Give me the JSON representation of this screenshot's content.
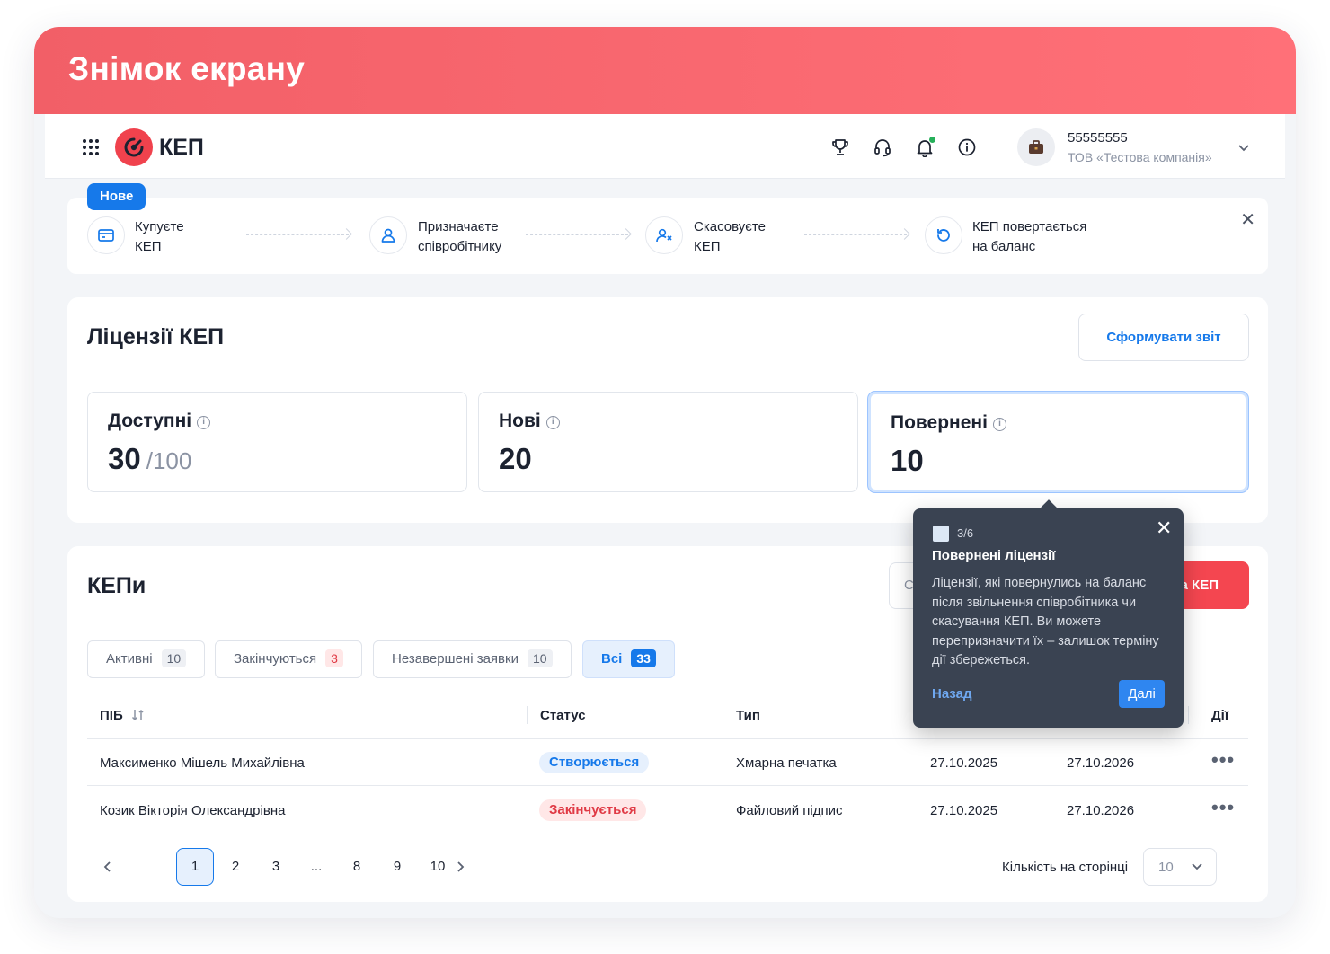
{
  "banner": {
    "title": "Знімок екрану"
  },
  "header": {
    "logo_text": "КЕП",
    "icons": [
      "apps-grid-icon",
      "trophy-icon",
      "headset-icon",
      "bell-icon",
      "info-icon"
    ],
    "account": {
      "id": "55555555",
      "company": "ТОВ «Тестова компанія»"
    }
  },
  "onboarding": {
    "badge": "Нове",
    "steps": [
      {
        "icon": "card-icon",
        "line1": "Купуєте",
        "line2": "КЕП"
      },
      {
        "icon": "user-icon",
        "line1": "Призначаєте",
        "line2": "співробітнику"
      },
      {
        "icon": "user-cancel-icon",
        "line1": "Скасовуєте",
        "line2": "КЕП"
      },
      {
        "icon": "refresh-icon",
        "line1": "КЕП повертається",
        "line2": "на баланс"
      }
    ]
  },
  "licenses": {
    "title": "Ліцензії КЕП",
    "report_button": "Сформувати звіт",
    "cards": [
      {
        "label": "Доступні",
        "value": "30",
        "total": "/100"
      },
      {
        "label": "Нові",
        "value": "20",
        "total": ""
      },
      {
        "label": "Повернені",
        "value": "10",
        "total": ""
      }
    ]
  },
  "keps": {
    "title": "КЕПи",
    "search_placeholder": "С",
    "add_button": "а КЕП",
    "tabs": [
      {
        "label": "Активні",
        "count": "10"
      },
      {
        "label": "Закінчуються",
        "count": "3"
      },
      {
        "label": "Незавершені заявки",
        "count": "10"
      },
      {
        "label": "Всі",
        "count": "33"
      }
    ],
    "columns": {
      "name": "ПІБ",
      "status": "Статус",
      "type": "Тип",
      "actions": "Дії"
    },
    "rows": [
      {
        "name": "Максименко Мішель Михайлівна",
        "status": "Створюється",
        "type": "Хмарна печатка",
        "start": "27.10.2025",
        "end": "27.10.2026"
      },
      {
        "name": "Козик Вікторія Олександрівна",
        "status": "Закінчується",
        "type": "Файловий підпис",
        "start": "27.10.2025",
        "end": "27.10.2026"
      }
    ],
    "pagination": {
      "pages": [
        "1",
        "2",
        "3",
        "...",
        "8",
        "9",
        "10"
      ],
      "current": "1"
    },
    "per_page_label": "Кількість на сторінці",
    "per_page_value": "10"
  },
  "tooltip": {
    "step": "3/6",
    "title": "Повернені ліцензії",
    "text": "Ліцензії, які повернулись на баланс після звільнення співробітника чи скасування КЕП. Ви можете перепризначити їх – залишок терміну дії збережеться.",
    "back": "Назад",
    "next": "Далі"
  },
  "colors": {
    "brand_red": "#f0424d",
    "accent_blue": "#1679ea",
    "banner": "#ff6b72",
    "tooltip_bg": "#3a4352"
  }
}
